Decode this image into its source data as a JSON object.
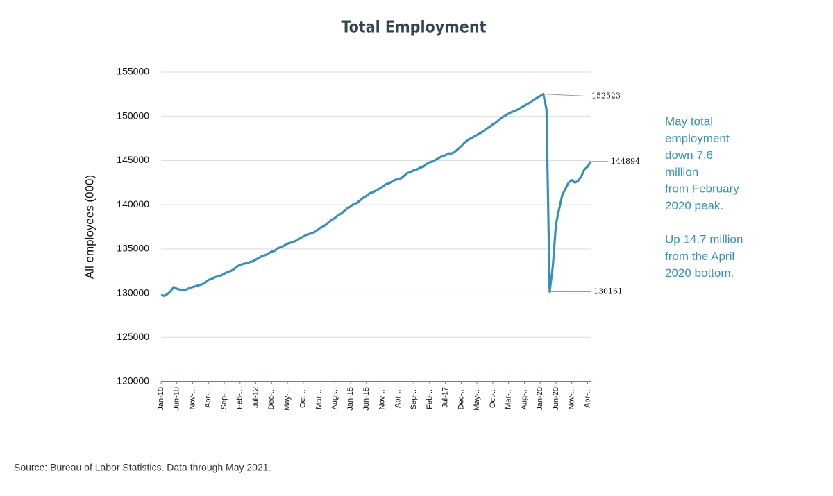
{
  "chart_data": {
    "type": "line",
    "title": "Total Employment",
    "y_label": "All employees (000)",
    "source": "Source: Bureau of Labor Statistics. Data through May 2021.",
    "note": [
      [
        "May total",
        "employment",
        "down 7.6",
        "million",
        "from February",
        "2020 peak."
      ],
      [
        "Up 14.7 million",
        "from the April",
        "2020 bottom."
      ]
    ],
    "color": "#3a8fb7",
    "grid": true,
    "ylim": [
      120000,
      155000
    ],
    "yticks": [
      120000,
      125000,
      130000,
      135000,
      140000,
      145000,
      150000,
      155000
    ],
    "categories": [
      "Jan-10",
      null,
      null,
      null,
      null,
      "Jun-10",
      null,
      null,
      null,
      null,
      "Nov-...",
      null,
      null,
      null,
      null,
      "Apr-...",
      null,
      null,
      null,
      null,
      "Sep-...",
      null,
      null,
      null,
      null,
      "Feb-...",
      null,
      null,
      null,
      null,
      "Jul-12",
      null,
      null,
      null,
      null,
      "Dec-...",
      null,
      null,
      null,
      null,
      "May-...",
      null,
      null,
      null,
      null,
      "Oct-...",
      null,
      null,
      null,
      null,
      "Mar-...",
      null,
      null,
      null,
      null,
      "Aug-...",
      null,
      null,
      null,
      null,
      "Jan-15",
      null,
      null,
      null,
      null,
      "Jun-15",
      null,
      null,
      null,
      null,
      "Nov-...",
      null,
      null,
      null,
      null,
      "Apr-...",
      null,
      null,
      null,
      null,
      "Sep-...",
      null,
      null,
      null,
      null,
      "Feb-...",
      null,
      null,
      null,
      null,
      "Jul-17",
      null,
      null,
      null,
      null,
      "Dec-...",
      null,
      null,
      null,
      null,
      "May-...",
      null,
      null,
      null,
      null,
      "Oct-...",
      null,
      null,
      null,
      null,
      "Mar-...",
      null,
      null,
      null,
      null,
      "Aug-...",
      null,
      null,
      null,
      null,
      "Jan-20",
      null,
      null,
      null,
      null,
      "Jun-20",
      null,
      null,
      null,
      null,
      "Nov-...",
      null,
      null,
      null,
      null,
      "Apr-...",
      null
    ],
    "values": [
      129800,
      129700,
      129900,
      130200,
      130700,
      130500,
      130400,
      130400,
      130400,
      130600,
      130700,
      130800,
      130900,
      131000,
      131200,
      131500,
      131600,
      131800,
      131900,
      132000,
      132200,
      132400,
      132500,
      132700,
      133000,
      133200,
      133300,
      133400,
      133500,
      133600,
      133800,
      134000,
      134200,
      134300,
      134500,
      134700,
      134800,
      135100,
      135200,
      135400,
      135600,
      135700,
      135800,
      136000,
      136200,
      136400,
      136600,
      136700,
      136800,
      137000,
      137300,
      137500,
      137700,
      138000,
      138300,
      138500,
      138800,
      139000,
      139300,
      139600,
      139800,
      140100,
      140200,
      140500,
      140800,
      141000,
      141300,
      141400,
      141600,
      141800,
      142000,
      142300,
      142400,
      142600,
      142800,
      142900,
      143000,
      143300,
      143600,
      143700,
      143900,
      144000,
      144200,
      144300,
      144600,
      144800,
      144900,
      145100,
      145300,
      145500,
      145600,
      145800,
      145800,
      146000,
      146300,
      146600,
      147000,
      147300,
      147500,
      147700,
      147900,
      148100,
      148300,
      148600,
      148800,
      149100,
      149300,
      149600,
      149900,
      150100,
      150300,
      150500,
      150600,
      150800,
      151000,
      151200,
      151400,
      151600,
      151900,
      152100,
      152300,
      152523,
      150800,
      130161,
      133000,
      137800,
      139500,
      141100,
      141800,
      142500,
      142800,
      142500,
      142700,
      143200,
      144000,
      144300,
      144894
    ],
    "labeled_points": [
      121,
      123,
      136
    ]
  }
}
